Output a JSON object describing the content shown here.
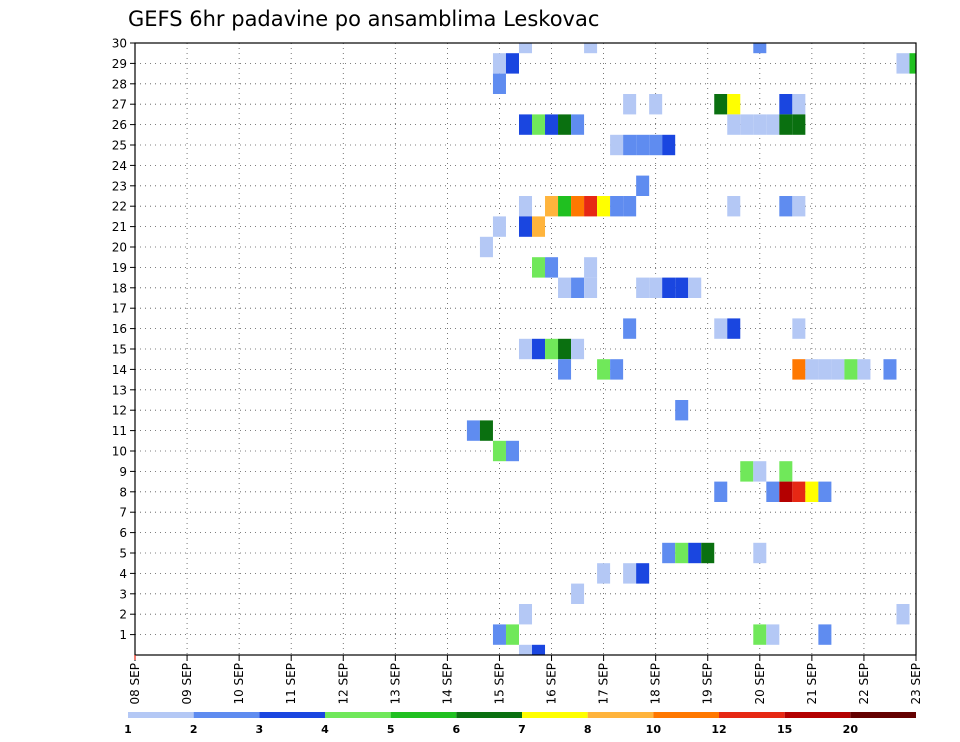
{
  "chart_data": {
    "type": "heatmap",
    "title": "GEFS 6hr padavine po ansamblima Leskovac",
    "x_tick_labels": [
      "08 SEP",
      "09 SEP",
      "10 SEP",
      "11 SEP",
      "12 SEP",
      "13 SEP",
      "14 SEP",
      "15 SEP",
      "16 SEP",
      "17 SEP",
      "18 SEP",
      "19 SEP",
      "20 SEP",
      "21 SEP",
      "22 SEP",
      "23 SEP"
    ],
    "x_range_hours": [
      0,
      360
    ],
    "x_step_hours": 6,
    "y_tick_labels": [
      "1",
      "2",
      "3",
      "4",
      "5",
      "6",
      "7",
      "8",
      "9",
      "10",
      "11",
      "12",
      "13",
      "14",
      "15",
      "16",
      "17",
      "18",
      "19",
      "20",
      "21",
      "22",
      "23",
      "24",
      "25",
      "26",
      "27",
      "28",
      "29",
      "30"
    ],
    "y_range": [
      0,
      30
    ],
    "grid": true,
    "legend": {
      "placement": "bottom",
      "colors": [
        "#b4c8f5",
        "#5f8cf0",
        "#1a46e0",
        "#70e85a",
        "#20c020",
        "#0a7010",
        "#ffff00",
        "#ffb43c",
        "#ff7800",
        "#e62814",
        "#b40000",
        "#640000"
      ],
      "labels": [
        "1",
        "2",
        "3",
        "4",
        "5",
        "6",
        "7",
        "8",
        "10",
        "12",
        "15",
        "20"
      ]
    },
    "cells": [
      {
        "m": 30,
        "h": 180,
        "c": 1
      },
      {
        "m": 30,
        "h": 210,
        "c": 1
      },
      {
        "m": 30,
        "h": 288,
        "c": 2
      },
      {
        "m": 29,
        "h": 168,
        "c": 1
      },
      {
        "m": 29,
        "h": 174,
        "c": 3
      },
      {
        "m": 29,
        "h": 354,
        "c": 1
      },
      {
        "m": 29,
        "h": 360,
        "c": 5
      },
      {
        "m": 28,
        "h": 168,
        "c": 2
      },
      {
        "m": 27,
        "h": 228,
        "c": 1
      },
      {
        "m": 27,
        "h": 240,
        "c": 1
      },
      {
        "m": 27,
        "h": 270,
        "c": 6
      },
      {
        "m": 27,
        "h": 276,
        "c": 7
      },
      {
        "m": 27,
        "h": 300,
        "c": 3
      },
      {
        "m": 27,
        "h": 306,
        "c": 1
      },
      {
        "m": 26,
        "h": 180,
        "c": 3
      },
      {
        "m": 26,
        "h": 186,
        "c": 4
      },
      {
        "m": 26,
        "h": 192,
        "c": 3
      },
      {
        "m": 26,
        "h": 198,
        "c": 6
      },
      {
        "m": 26,
        "h": 204,
        "c": 2
      },
      {
        "m": 26,
        "h": 276,
        "c": 1
      },
      {
        "m": 26,
        "h": 282,
        "c": 1
      },
      {
        "m": 26,
        "h": 288,
        "c": 1
      },
      {
        "m": 26,
        "h": 294,
        "c": 1
      },
      {
        "m": 26,
        "h": 300,
        "c": 6
      },
      {
        "m": 26,
        "h": 306,
        "c": 6
      },
      {
        "m": 25,
        "h": 222,
        "c": 1
      },
      {
        "m": 25,
        "h": 228,
        "c": 2
      },
      {
        "m": 25,
        "h": 234,
        "c": 2
      },
      {
        "m": 25,
        "h": 240,
        "c": 2
      },
      {
        "m": 25,
        "h": 246,
        "c": 3
      },
      {
        "m": 23,
        "h": 234,
        "c": 2
      },
      {
        "m": 22,
        "h": 180,
        "c": 1
      },
      {
        "m": 22,
        "h": 192,
        "c": 8
      },
      {
        "m": 22,
        "h": 198,
        "c": 5
      },
      {
        "m": 22,
        "h": 204,
        "c": 9
      },
      {
        "m": 22,
        "h": 210,
        "c": 10
      },
      {
        "m": 22,
        "h": 216,
        "c": 7
      },
      {
        "m": 22,
        "h": 222,
        "c": 2
      },
      {
        "m": 22,
        "h": 228,
        "c": 2
      },
      {
        "m": 22,
        "h": 276,
        "c": 1
      },
      {
        "m": 22,
        "h": 300,
        "c": 2
      },
      {
        "m": 22,
        "h": 306,
        "c": 1
      },
      {
        "m": 21,
        "h": 168,
        "c": 1
      },
      {
        "m": 21,
        "h": 180,
        "c": 3
      },
      {
        "m": 21,
        "h": 186,
        "c": 8
      },
      {
        "m": 20,
        "h": 162,
        "c": 1
      },
      {
        "m": 19,
        "h": 186,
        "c": 4
      },
      {
        "m": 19,
        "h": 192,
        "c": 2
      },
      {
        "m": 19,
        "h": 210,
        "c": 1
      },
      {
        "m": 18,
        "h": 198,
        "c": 1
      },
      {
        "m": 18,
        "h": 204,
        "c": 2
      },
      {
        "m": 18,
        "h": 210,
        "c": 1
      },
      {
        "m": 18,
        "h": 234,
        "c": 1
      },
      {
        "m": 18,
        "h": 240,
        "c": 1
      },
      {
        "m": 18,
        "h": 246,
        "c": 3
      },
      {
        "m": 18,
        "h": 252,
        "c": 3
      },
      {
        "m": 18,
        "h": 258,
        "c": 1
      },
      {
        "m": 16,
        "h": 228,
        "c": 2
      },
      {
        "m": 16,
        "h": 270,
        "c": 1
      },
      {
        "m": 16,
        "h": 276,
        "c": 3
      },
      {
        "m": 16,
        "h": 306,
        "c": 1
      },
      {
        "m": 15,
        "h": 180,
        "c": 1
      },
      {
        "m": 15,
        "h": 186,
        "c": 3
      },
      {
        "m": 15,
        "h": 192,
        "c": 4
      },
      {
        "m": 15,
        "h": 198,
        "c": 6
      },
      {
        "m": 15,
        "h": 204,
        "c": 1
      },
      {
        "m": 14,
        "h": 198,
        "c": 2
      },
      {
        "m": 14,
        "h": 216,
        "c": 4
      },
      {
        "m": 14,
        "h": 222,
        "c": 2
      },
      {
        "m": 14,
        "h": 306,
        "c": 9
      },
      {
        "m": 14,
        "h": 312,
        "c": 1
      },
      {
        "m": 14,
        "h": 318,
        "c": 1
      },
      {
        "m": 14,
        "h": 324,
        "c": 1
      },
      {
        "m": 14,
        "h": 330,
        "c": 4
      },
      {
        "m": 14,
        "h": 336,
        "c": 1
      },
      {
        "m": 14,
        "h": 348,
        "c": 2
      },
      {
        "m": 12,
        "h": 252,
        "c": 2
      },
      {
        "m": 11,
        "h": 156,
        "c": 2
      },
      {
        "m": 11,
        "h": 162,
        "c": 6
      },
      {
        "m": 10,
        "h": 168,
        "c": 4
      },
      {
        "m": 10,
        "h": 174,
        "c": 2
      },
      {
        "m": 9,
        "h": 282,
        "c": 4
      },
      {
        "m": 9,
        "h": 288,
        "c": 1
      },
      {
        "m": 9,
        "h": 300,
        "c": 4
      },
      {
        "m": 8,
        "h": 270,
        "c": 2
      },
      {
        "m": 8,
        "h": 294,
        "c": 2
      },
      {
        "m": 8,
        "h": 300,
        "c": 11
      },
      {
        "m": 8,
        "h": 306,
        "c": 10
      },
      {
        "m": 8,
        "h": 312,
        "c": 7
      },
      {
        "m": 8,
        "h": 318,
        "c": 2
      },
      {
        "m": 5,
        "h": 246,
        "c": 2
      },
      {
        "m": 5,
        "h": 252,
        "c": 4
      },
      {
        "m": 5,
        "h": 258,
        "c": 3
      },
      {
        "m": 5,
        "h": 264,
        "c": 6
      },
      {
        "m": 5,
        "h": 288,
        "c": 1
      },
      {
        "m": 4,
        "h": 216,
        "c": 1
      },
      {
        "m": 4,
        "h": 228,
        "c": 1
      },
      {
        "m": 4,
        "h": 234,
        "c": 3
      },
      {
        "m": 3,
        "h": 204,
        "c": 1
      },
      {
        "m": 2,
        "h": 180,
        "c": 1
      },
      {
        "m": 2,
        "h": 354,
        "c": 1
      },
      {
        "m": 1,
        "h": 168,
        "c": 2
      },
      {
        "m": 1,
        "h": 174,
        "c": 4
      },
      {
        "m": 1,
        "h": 288,
        "c": 4
      },
      {
        "m": 1,
        "h": 294,
        "c": 1
      },
      {
        "m": 1,
        "h": 318,
        "c": 2
      },
      {
        "m": 0,
        "h": 180,
        "c": 1
      },
      {
        "m": 0,
        "h": 186,
        "c": 3
      }
    ]
  }
}
